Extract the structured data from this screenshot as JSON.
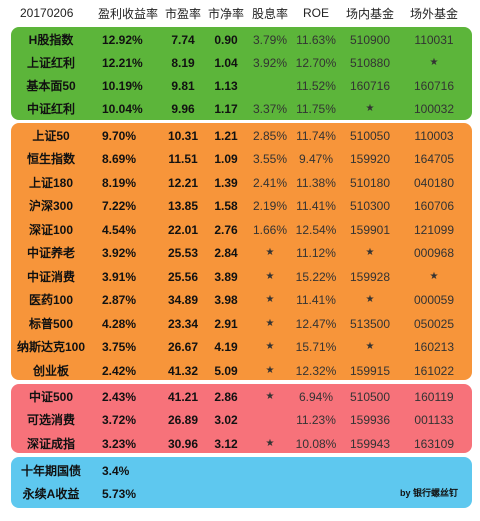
{
  "header": {
    "date": "20170206",
    "col_earnings_yield": "盈利收益率",
    "col_pe": "市盈率",
    "col_pb": "市净率",
    "col_dividend": "股息率",
    "col_roe": "ROE",
    "col_onsite": "场内基金",
    "col_offsite": "场外基金"
  },
  "colors": {
    "green": "#5cb53a",
    "orange": "#f7953a",
    "red": "#f7727a",
    "blue": "#5ec8ef"
  },
  "rows": [
    {
      "name": "H股指数",
      "ey": "12.92%",
      "pe": "7.74",
      "pb": "0.90",
      "div": "3.79%",
      "roe": "11.63%",
      "onsite": "510900",
      "offsite": "110031"
    },
    {
      "name": "上证红利",
      "ey": "12.21%",
      "pe": "8.19",
      "pb": "1.04",
      "div": "3.92%",
      "roe": "12.70%",
      "onsite": "510880",
      "offsite": "★"
    },
    {
      "name": "基本面50",
      "ey": "10.19%",
      "pe": "9.81",
      "pb": "1.13",
      "div": "",
      "roe": "11.52%",
      "onsite": "160716",
      "offsite": "160716"
    },
    {
      "name": "中证红利",
      "ey": "10.04%",
      "pe": "9.96",
      "pb": "1.17",
      "div": "3.37%",
      "roe": "11.75%",
      "onsite": "★",
      "offsite": "100032"
    },
    {
      "name": "上证50",
      "ey": "9.70%",
      "pe": "10.31",
      "pb": "1.21",
      "div": "2.85%",
      "roe": "11.74%",
      "onsite": "510050",
      "offsite": "110003"
    },
    {
      "name": "恒生指数",
      "ey": "8.69%",
      "pe": "11.51",
      "pb": "1.09",
      "div": "3.55%",
      "roe": "9.47%",
      "onsite": "159920",
      "offsite": "164705"
    },
    {
      "name": "上证180",
      "ey": "8.19%",
      "pe": "12.21",
      "pb": "1.39",
      "div": "2.41%",
      "roe": "11.38%",
      "onsite": "510180",
      "offsite": "040180"
    },
    {
      "name": "沪深300",
      "ey": "7.22%",
      "pe": "13.85",
      "pb": "1.58",
      "div": "2.19%",
      "roe": "11.41%",
      "onsite": "510300",
      "offsite": "160706"
    },
    {
      "name": "深证100",
      "ey": "4.54%",
      "pe": "22.01",
      "pb": "2.76",
      "div": "1.66%",
      "roe": "12.54%",
      "onsite": "159901",
      "offsite": "121099"
    },
    {
      "name": "中证养老",
      "ey": "3.92%",
      "pe": "25.53",
      "pb": "2.84",
      "div": "★",
      "roe": "11.12%",
      "onsite": "★",
      "offsite": "000968"
    },
    {
      "name": "中证消费",
      "ey": "3.91%",
      "pe": "25.56",
      "pb": "3.89",
      "div": "★",
      "roe": "15.22%",
      "onsite": "159928",
      "offsite": "★"
    },
    {
      "name": "医药100",
      "ey": "2.87%",
      "pe": "34.89",
      "pb": "3.98",
      "div": "★",
      "roe": "11.41%",
      "onsite": "★",
      "offsite": "000059"
    },
    {
      "name": "标普500",
      "ey": "4.28%",
      "pe": "23.34",
      "pb": "2.91",
      "div": "★",
      "roe": "12.47%",
      "onsite": "513500",
      "offsite": "050025"
    },
    {
      "name": "纳斯达克100",
      "ey": "3.75%",
      "pe": "26.67",
      "pb": "4.19",
      "div": "★",
      "roe": "15.71%",
      "onsite": "★",
      "offsite": "160213"
    },
    {
      "name": "创业板",
      "ey": "2.42%",
      "pe": "41.32",
      "pb": "5.09",
      "div": "★",
      "roe": "12.32%",
      "onsite": "159915",
      "offsite": "161022"
    },
    {
      "name": "中证500",
      "ey": "2.43%",
      "pe": "41.21",
      "pb": "2.86",
      "div": "★",
      "roe": "6.94%",
      "onsite": "510500",
      "offsite": "160119"
    },
    {
      "name": "可选消费",
      "ey": "3.72%",
      "pe": "26.89",
      "pb": "3.02",
      "div": "",
      "roe": "11.23%",
      "onsite": "159936",
      "offsite": "001133"
    },
    {
      "name": "深证成指",
      "ey": "3.23%",
      "pe": "30.96",
      "pb": "3.12",
      "div": "★",
      "roe": "10.08%",
      "onsite": "159943",
      "offsite": "163109"
    }
  ],
  "footer": [
    {
      "name": "十年期国债",
      "value": "3.4%"
    },
    {
      "name": "永续A收益",
      "value": "5.73%"
    }
  ],
  "credit": "by 银行螺丝钉"
}
